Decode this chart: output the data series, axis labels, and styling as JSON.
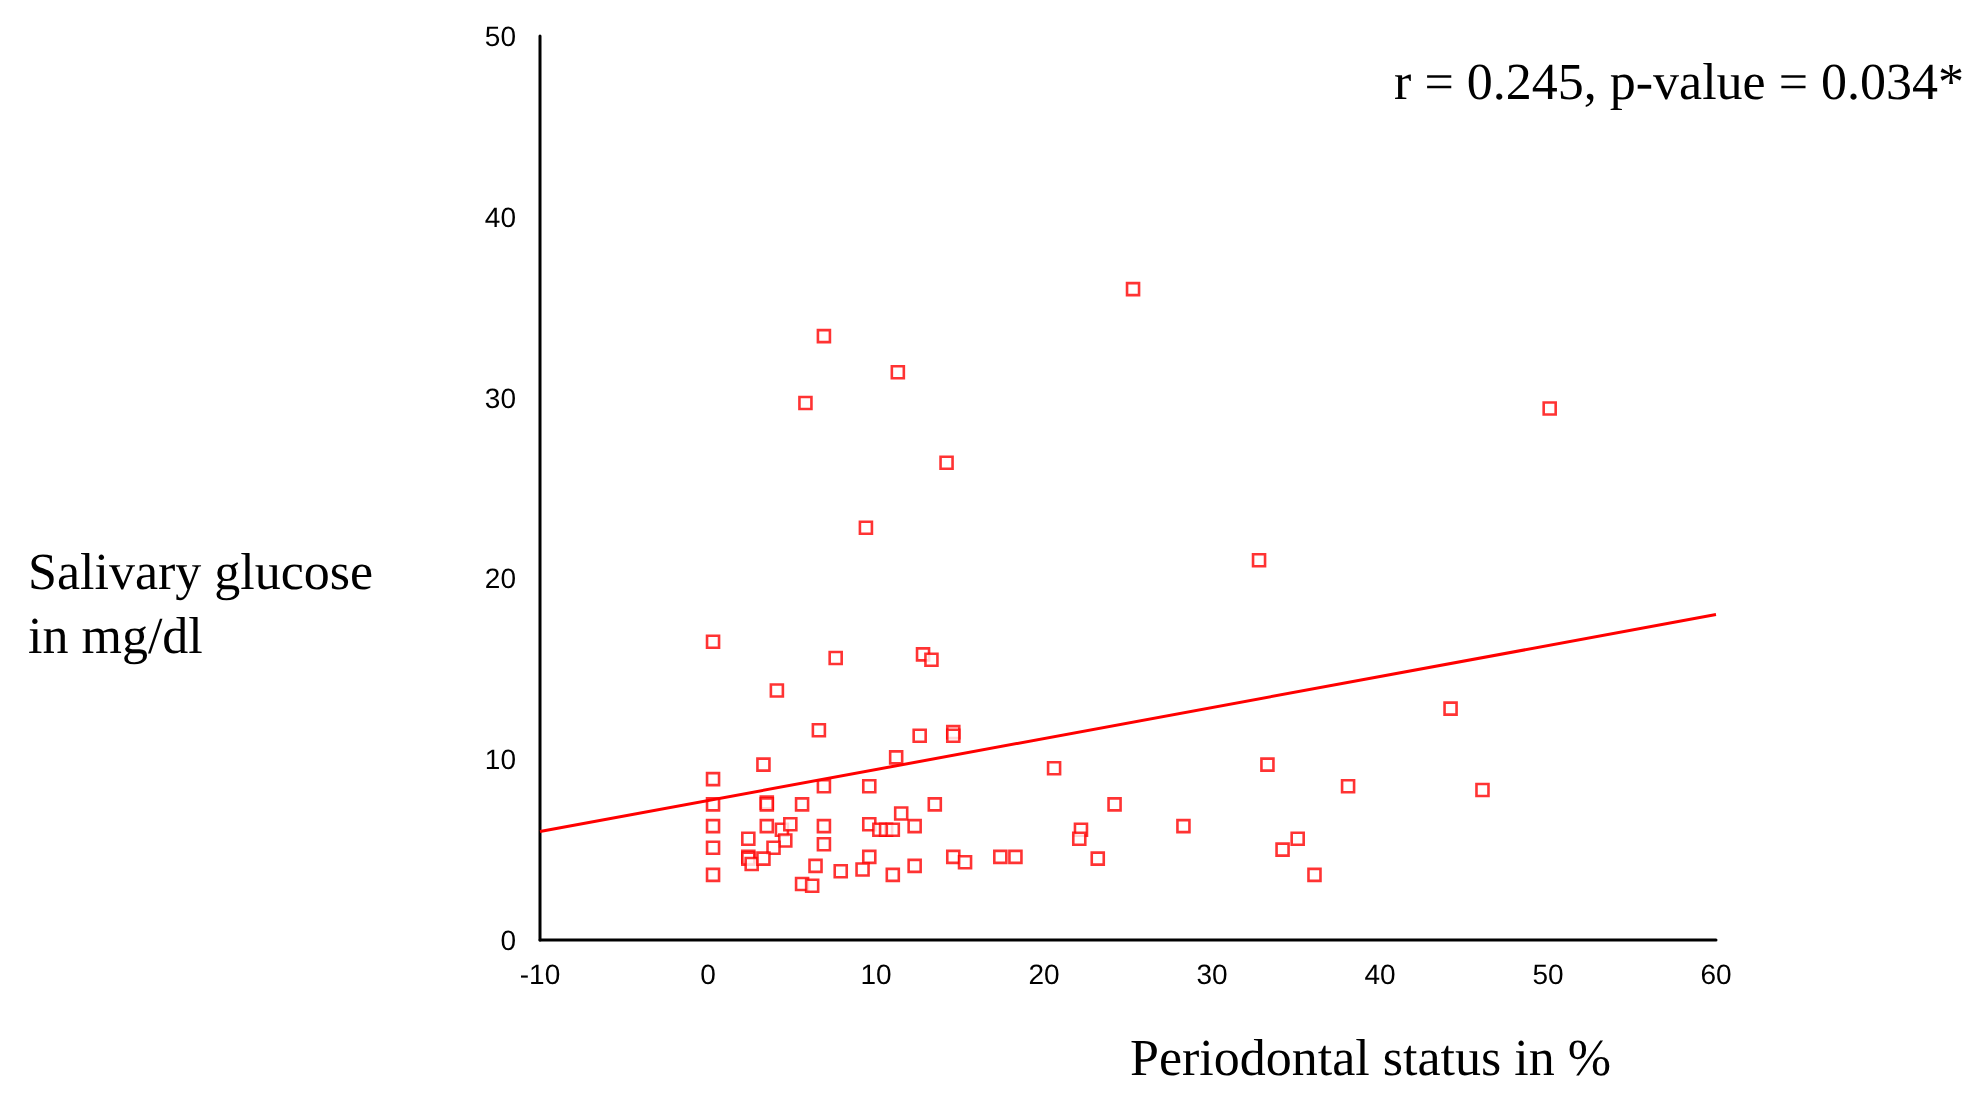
{
  "chart_data": {
    "type": "scatter",
    "xlabel": "Periodontal status in %",
    "ylabel": "Salivary glucose in mg/dl",
    "annotations": [
      "r = 0.245, p-value = 0.034*"
    ],
    "xlim": [
      -10,
      60
    ],
    "xticks": [
      -10,
      0,
      10,
      20,
      30,
      40,
      50,
      60
    ],
    "ylim": [
      0,
      50
    ],
    "yticks": [
      0,
      10,
      20,
      30,
      40,
      50
    ],
    "grid": false,
    "series": [
      {
        "marker": "square",
        "color": "#ff0000",
        "x": [
          9.4,
          0.3,
          7.6,
          12.8,
          13.3,
          4.1,
          6.6,
          12.6,
          14.6,
          14.6,
          11.2,
          3.3,
          0.3,
          6.9,
          9.6,
          20.6,
          0.3,
          3.5,
          3.5,
          5.6,
          13.5,
          11.5,
          0.3,
          3.5,
          4.4,
          4.9,
          6.9,
          9.6,
          10.2,
          10.6,
          11.0,
          12.3,
          2.4,
          4.6,
          3.9,
          0.3,
          6.9,
          2.4,
          2.4,
          2.6,
          3.3,
          9.6,
          6.4,
          12.3,
          14.6,
          15.3,
          17.4,
          18.3,
          0.3,
          7.9,
          9.2,
          11.0,
          5.6,
          6.2,
          22.2,
          22.1,
          23.2,
          6.9,
          11.3,
          5.8,
          14.2,
          25.3,
          50.1,
          32.8,
          44.2,
          33.3,
          38.1,
          46.1,
          24.2,
          28.3,
          35.1,
          34.2,
          36.1
        ],
        "values": [
          22.8,
          16.5,
          15.6,
          15.8,
          15.5,
          13.8,
          11.6,
          11.3,
          11.5,
          11.3,
          10.1,
          9.7,
          8.9,
          8.5,
          8.5,
          9.5,
          7.5,
          7.6,
          7.5,
          7.5,
          7.5,
          7.0,
          6.3,
          6.3,
          6.1,
          6.4,
          6.3,
          6.4,
          6.1,
          6.1,
          6.1,
          6.3,
          5.6,
          5.5,
          5.1,
          5.1,
          5.3,
          4.6,
          4.5,
          4.2,
          4.5,
          4.6,
          4.1,
          4.1,
          4.6,
          4.3,
          4.6,
          4.6,
          3.6,
          3.8,
          3.9,
          3.6,
          3.1,
          3.0,
          6.1,
          5.6,
          4.5,
          33.4,
          31.4,
          29.7,
          26.4,
          36.0,
          29.4,
          21.0,
          12.8,
          9.7,
          8.5,
          8.3,
          7.5,
          6.3,
          5.6,
          5.0,
          3.6
        ]
      },
      {
        "type": "line",
        "marker": "none",
        "line_style": "solid",
        "color": "#ff0000",
        "x": [
          -10,
          60
        ],
        "values": [
          6.0,
          18.0
        ]
      }
    ]
  }
}
